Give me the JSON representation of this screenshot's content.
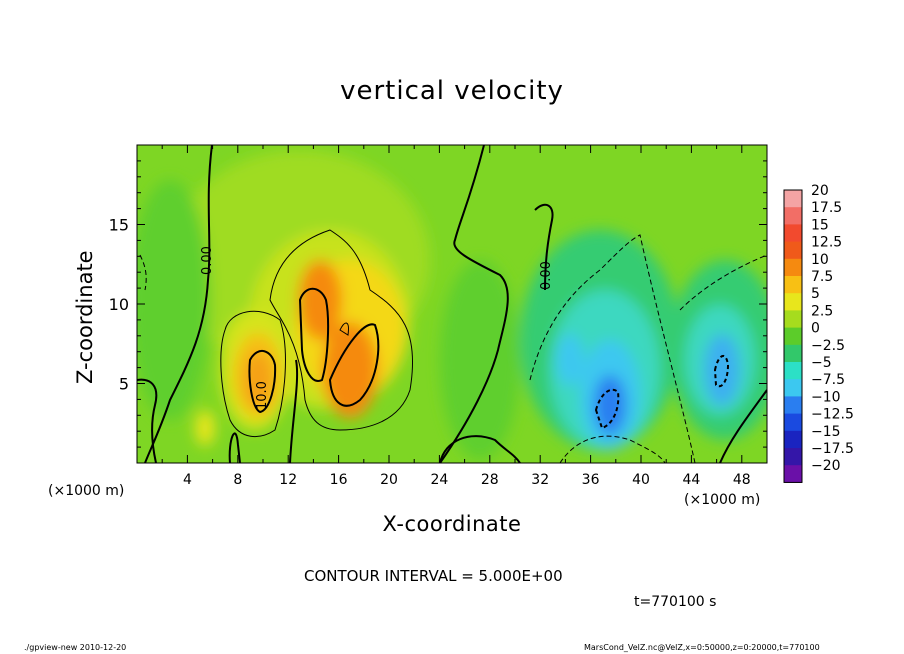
{
  "chart_data": {
    "type": "heatmap",
    "title": "vertical velocity",
    "xlabel": "X-coordinate",
    "ylabel": "Z-coordinate",
    "x_unit": "(×1000 m)",
    "y_unit": "(×1000 m)",
    "xlim": [
      0,
      50
    ],
    "ylim": [
      0,
      20
    ],
    "x_ticks": [
      4,
      8,
      12,
      16,
      20,
      24,
      28,
      32,
      36,
      40,
      44,
      48
    ],
    "y_ticks": [
      5,
      10,
      15
    ],
    "colorbar": {
      "labels": [
        "20",
        "17.5",
        "15",
        "12.5",
        "10",
        "7.5",
        "5",
        "2.5",
        "0",
        "−2.5",
        "−5",
        "−7.5",
        "−10",
        "−12.5",
        "−15",
        "−17.5",
        "−20"
      ],
      "colors": [
        "#f4a4a4",
        "#f26e66",
        "#f24a2e",
        "#f05a1a",
        "#f58a10",
        "#f8c014",
        "#e8e61c",
        "#a6dc1e",
        "#5ccc2a",
        "#32c86a",
        "#2ce0c6",
        "#3cc8f0",
        "#2a7ef0",
        "#1a4ae0",
        "#1a24c0",
        "#3416a8",
        "#6a10a8"
      ]
    },
    "contour_labels": [
      "0.00",
      "0.00",
      "10.0"
    ],
    "grid": false
  },
  "texts": {
    "contour_interval": "CONTOUR INTERVAL = 5.000E+00",
    "time": "t=770100 s",
    "footer_left": "./gpview-new  2010-12-20",
    "footer_right": "MarsCond_VelZ.nc@VelZ,x=0:50000,z=0:20000,t=770100"
  }
}
